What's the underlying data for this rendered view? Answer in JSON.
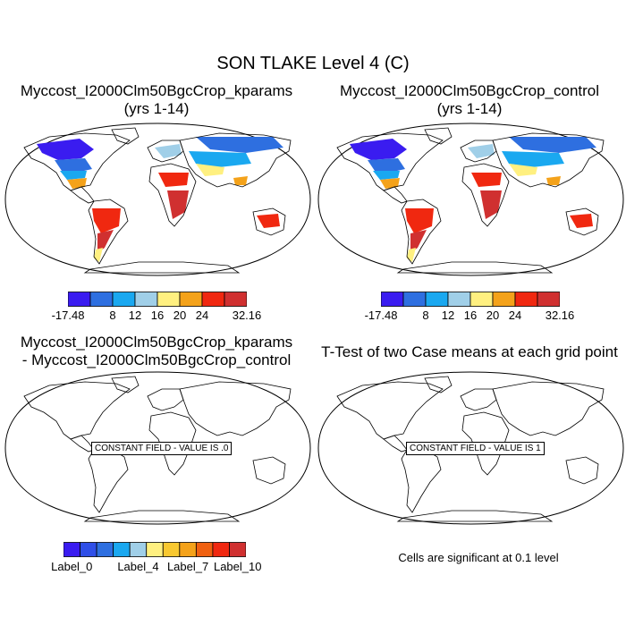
{
  "figure": {
    "title": "SON TLAKE Level 4 (C)"
  },
  "panels": [
    {
      "title_line1": "Myccost_I2000Clm50BgcCrop_kparams",
      "title_line2": "(yrs 1-14)",
      "colorbar_labels": [
        "-17.48",
        "8",
        "12",
        "16",
        "20",
        "24",
        "32.16"
      ]
    },
    {
      "title_line1": "Myccost_I2000Clm50BgcCrop_control",
      "title_line2": "(yrs 1-14)",
      "colorbar_labels": [
        "-17.48",
        "8",
        "12",
        "16",
        "20",
        "24",
        "32.16"
      ]
    },
    {
      "title_line1": "Myccost_I2000Clm50BgcCrop_kparams",
      "title_line2": "- Myccost_I2000Clm50BgcCrop_control",
      "constant_field": "CONSTANT FIELD - VALUE IS .0",
      "colorbar_labels": [
        "Label_0",
        "Label_4",
        "Label_7",
        "Label_10"
      ]
    },
    {
      "title_line1": "T-Test of two Case means at each grid point",
      "constant_field": "CONSTANT FIELD - VALUE IS 1",
      "note": "Cells are significant at 0.1 level"
    }
  ],
  "colors": {
    "temp_scale": [
      "#3a1cf0",
      "#2e6fe0",
      "#1aa8f0",
      "#a0cfe8",
      "#fff080",
      "#f4a21a",
      "#f02810",
      "#d03030"
    ],
    "diff_scale": [
      "#3a1cf0",
      "#2f4fe8",
      "#2e6fe0",
      "#1aa8f0",
      "#a0cfe8",
      "#fff080",
      "#f8c830",
      "#f4a21a",
      "#f06010",
      "#f02810",
      "#d03030"
    ]
  }
}
